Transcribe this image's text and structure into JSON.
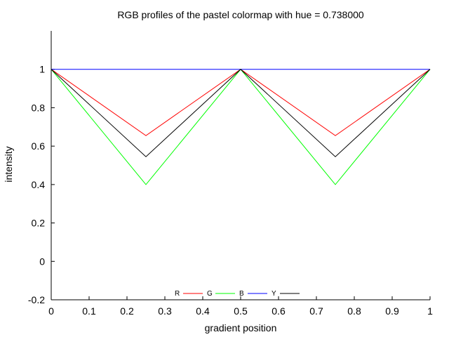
{
  "chart_data": {
    "type": "line",
    "title": "RGB profiles of the pastel colormap with hue = 0.738000",
    "xlabel": "gradient position",
    "ylabel": "intensity",
    "xlim": [
      0,
      1
    ],
    "ylim": [
      -0.2,
      1.2
    ],
    "xticks": [
      0,
      0.1,
      0.2,
      0.3,
      0.4,
      0.5,
      0.6,
      0.7,
      0.8,
      0.9,
      1
    ],
    "xtick_labels": [
      "0",
      "0.1",
      "0.2",
      "0.3",
      "0.4",
      "0.5",
      "0.6",
      "0.7",
      "0.8",
      "0.9",
      "1"
    ],
    "yticks": [
      -0.2,
      0,
      0.2,
      0.4,
      0.6,
      0.8,
      1
    ],
    "ytick_labels": [
      "-0.2",
      "0",
      "0.2",
      "0.4",
      "0.6",
      "0.8",
      "1"
    ],
    "grid": false,
    "legend_position": "bottom-center",
    "series": [
      {
        "name": "R",
        "color": "#ff0000",
        "x": [
          0,
          0.25,
          0.5,
          0.75,
          1
        ],
        "y": [
          1,
          0.655,
          1,
          0.655,
          1
        ]
      },
      {
        "name": "G",
        "color": "#00ff00",
        "x": [
          0,
          0.25,
          0.5,
          0.75,
          1
        ],
        "y": [
          1,
          0.4,
          1,
          0.4,
          1
        ]
      },
      {
        "name": "B",
        "color": "#0000ff",
        "x": [
          0,
          0.25,
          0.5,
          0.75,
          1
        ],
        "y": [
          1,
          1,
          1,
          1,
          1
        ]
      },
      {
        "name": "Y",
        "color": "#000000",
        "x": [
          0,
          0.25,
          0.5,
          0.75,
          1
        ],
        "y": [
          1,
          0.545,
          1,
          0.545,
          1
        ]
      }
    ]
  }
}
